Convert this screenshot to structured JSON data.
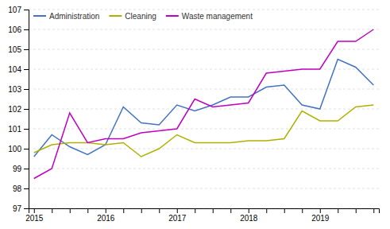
{
  "chart_data": {
    "type": "line",
    "categories": [
      "2015",
      null,
      null,
      null,
      "2016",
      null,
      null,
      null,
      "2017",
      null,
      null,
      null,
      "2018",
      null,
      null,
      null,
      "2019",
      null,
      null,
      null
    ],
    "series": [
      {
        "name": "Administration",
        "color": "#4472c4",
        "values": [
          99.6,
          100.7,
          100.1,
          99.7,
          100.2,
          102.1,
          101.3,
          101.2,
          102.2,
          101.9,
          102.2,
          102.6,
          102.6,
          103.1,
          103.2,
          102.2,
          102.0,
          104.5,
          104.1,
          103.2
        ]
      },
      {
        "name": "Cleaning",
        "color": "#b0b000",
        "values": [
          99.8,
          100.2,
          100.3,
          100.3,
          100.2,
          100.3,
          99.6,
          100.0,
          100.7,
          100.3,
          100.3,
          100.3,
          100.4,
          100.4,
          100.5,
          101.9,
          101.4,
          101.4,
          102.1,
          102.2
        ]
      },
      {
        "name": "Waste management",
        "color": "#c000c0",
        "values": [
          98.5,
          99.0,
          101.8,
          100.3,
          100.5,
          100.5,
          100.8,
          100.9,
          101.0,
          102.5,
          102.1,
          102.2,
          102.3,
          103.8,
          103.9,
          104.0,
          104.0,
          105.4,
          105.4,
          106.0
        ]
      }
    ],
    "ylim": [
      97,
      107
    ],
    "yticks": [
      97,
      98,
      99,
      100,
      101,
      102,
      103,
      104,
      105,
      106,
      107
    ],
    "grid": true,
    "legend": "upper-left"
  }
}
